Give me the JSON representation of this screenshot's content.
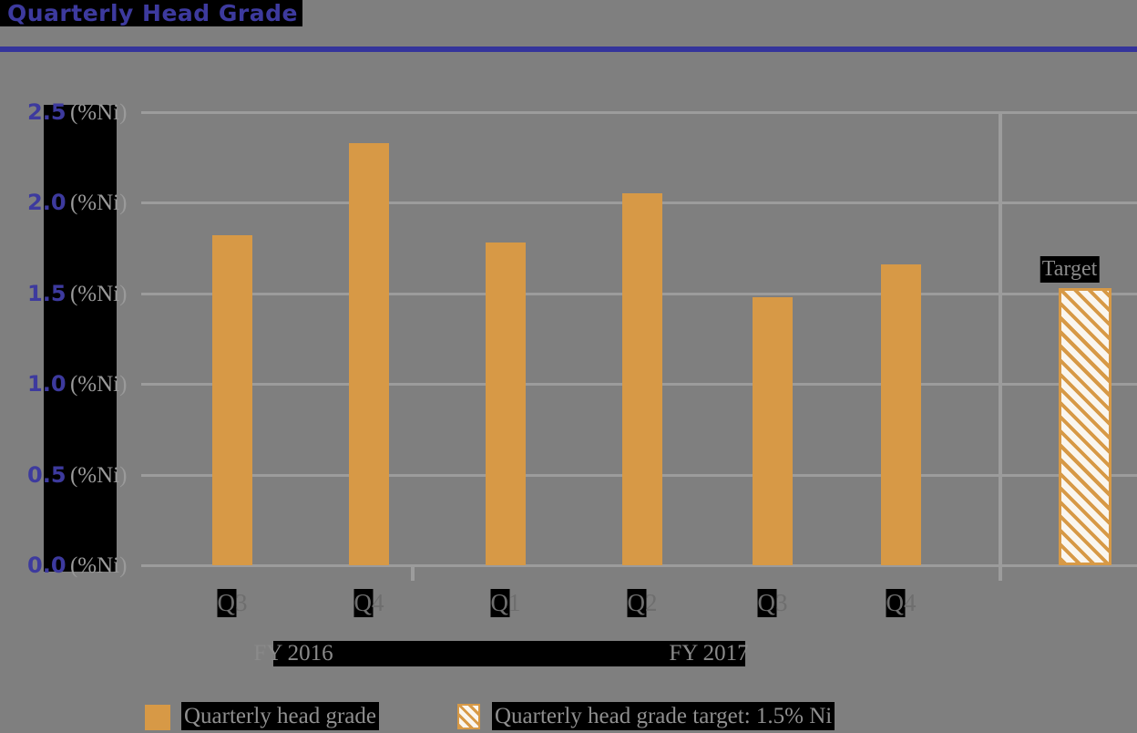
{
  "title": "Quarterly Head Grade",
  "colors": {
    "background": "#7f7f7f",
    "title": "#3d3a9e",
    "divider": "#34349b",
    "bar": "#d79946",
    "gridline": "#9c9c9c",
    "highlight_box": "#000000",
    "axis_number": "#3d3a9e",
    "axis_unit_text": "#9a9a9a",
    "tick_label_text": "#6e6e6e",
    "hatch_fill": "#faf6ef"
  },
  "chart_data": {
    "type": "bar",
    "title": "Quarterly Head Grade",
    "categories": [
      "Q3",
      "Q4",
      "Q1",
      "Q2",
      "Q3",
      "Q4"
    ],
    "group_labels": [
      "FY 2016",
      "FY 2017"
    ],
    "values": [
      1.82,
      2.33,
      1.78,
      2.05,
      1.48,
      1.66
    ],
    "series": [
      {
        "name": "Quarterly head grade",
        "values": [
          1.82,
          2.33,
          1.78,
          2.05,
          1.48,
          1.66
        ]
      }
    ],
    "target": {
      "label": "Target",
      "value": 1.5
    },
    "y_ticks": [
      "0.0",
      "0.5",
      "1.0",
      "1.5",
      "2.0",
      "2.5"
    ],
    "y_unit": "(%Ni)",
    "ylim": [
      0,
      2.5
    ],
    "grid": true,
    "legend_position": "bottom",
    "legend": [
      {
        "label": "Quarterly head grade",
        "swatch": "solid-orange"
      },
      {
        "label": "Quarterly head grade target: 1.5% Ni",
        "swatch": "orange-hatched"
      }
    ]
  }
}
